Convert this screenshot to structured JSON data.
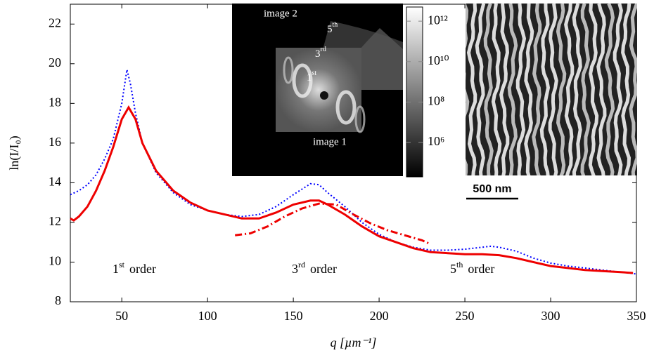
{
  "chart_data": {
    "type": "line",
    "x_label": "q [µm⁻¹]",
    "y_label": "ln(I/I₀)",
    "xlim": [
      20,
      350
    ],
    "ylim": [
      8,
      23
    ],
    "xticks": [
      50,
      100,
      150,
      200,
      250,
      300,
      350
    ],
    "yticks": [
      8,
      10,
      12,
      14,
      16,
      18,
      20,
      22
    ],
    "series": [
      {
        "color": "#0000ff",
        "style": "dotted",
        "x": [
          20,
          25,
          30,
          35,
          40,
          45,
          50,
          53,
          55,
          58,
          62,
          70,
          80,
          90,
          100,
          110,
          120,
          130,
          140,
          150,
          160,
          165,
          170,
          180,
          190,
          200,
          210,
          220,
          230,
          240,
          250,
          260,
          265,
          270,
          280,
          290,
          300,
          310,
          320,
          330,
          340,
          350
        ],
        "values": [
          13.4,
          13.6,
          13.9,
          14.4,
          15.2,
          16.2,
          18.0,
          19.7,
          19.0,
          17.5,
          16.0,
          14.5,
          13.5,
          12.9,
          12.6,
          12.4,
          12.3,
          12.4,
          12.8,
          13.4,
          13.95,
          13.9,
          13.5,
          12.8,
          12.0,
          11.4,
          11.0,
          10.75,
          10.6,
          10.6,
          10.65,
          10.75,
          10.8,
          10.75,
          10.55,
          10.2,
          9.95,
          9.8,
          9.7,
          9.6,
          9.5,
          9.4
        ]
      },
      {
        "color": "#ee0000",
        "style": "solid",
        "x": [
          20,
          22,
          25,
          30,
          35,
          40,
          45,
          50,
          54,
          58,
          62,
          70,
          80,
          90,
          100,
          110,
          120,
          130,
          140,
          150,
          160,
          165,
          170,
          180,
          190,
          200,
          210,
          220,
          230,
          240,
          250,
          260,
          270,
          280,
          290,
          300,
          310,
          320,
          330,
          340,
          348
        ],
        "values": [
          12.2,
          12.1,
          12.3,
          12.8,
          13.6,
          14.6,
          15.8,
          17.2,
          17.8,
          17.2,
          16.0,
          14.6,
          13.6,
          13.0,
          12.6,
          12.4,
          12.2,
          12.2,
          12.5,
          12.9,
          13.1,
          13.1,
          12.9,
          12.4,
          11.8,
          11.3,
          11.0,
          10.7,
          10.5,
          10.45,
          10.4,
          10.4,
          10.35,
          10.2,
          10.0,
          9.8,
          9.7,
          9.6,
          9.55,
          9.5,
          9.45
        ]
      },
      {
        "color": "#ee0000",
        "style": "dashdot",
        "x": [
          116,
          125,
          135,
          145,
          155,
          165,
          175,
          185,
          195,
          205,
          215,
          225,
          230
        ],
        "values": [
          11.35,
          11.45,
          11.8,
          12.3,
          12.7,
          12.95,
          12.9,
          12.4,
          11.95,
          11.6,
          11.35,
          11.1,
          10.9
        ]
      }
    ],
    "annotations": [
      {
        "num": "1",
        "sup": "st",
        "text": "order"
      },
      {
        "num": "3",
        "sup": "rd",
        "text": "order"
      },
      {
        "num": "5",
        "sup": "th",
        "text": "order"
      }
    ],
    "inset": {
      "image_labels": [
        "image 2",
        "image 1"
      ],
      "order_labels": [
        {
          "num": "5",
          "sup": "th"
        },
        {
          "num": "3",
          "sup": "rd"
        },
        {
          "num": "1",
          "sup": "st"
        }
      ],
      "colorbar": {
        "log": true,
        "lim": [
          20000,
          5000000000000
        ],
        "ticks": [
          {
            "value": 1000000,
            "label": "10⁶"
          },
          {
            "value": 100000000,
            "label": "10⁸"
          },
          {
            "value": 10000000000,
            "label": "10¹⁰"
          },
          {
            "value": 1000000000000,
            "label": "10¹²"
          }
        ]
      },
      "scale_bar": "500 nm"
    }
  }
}
